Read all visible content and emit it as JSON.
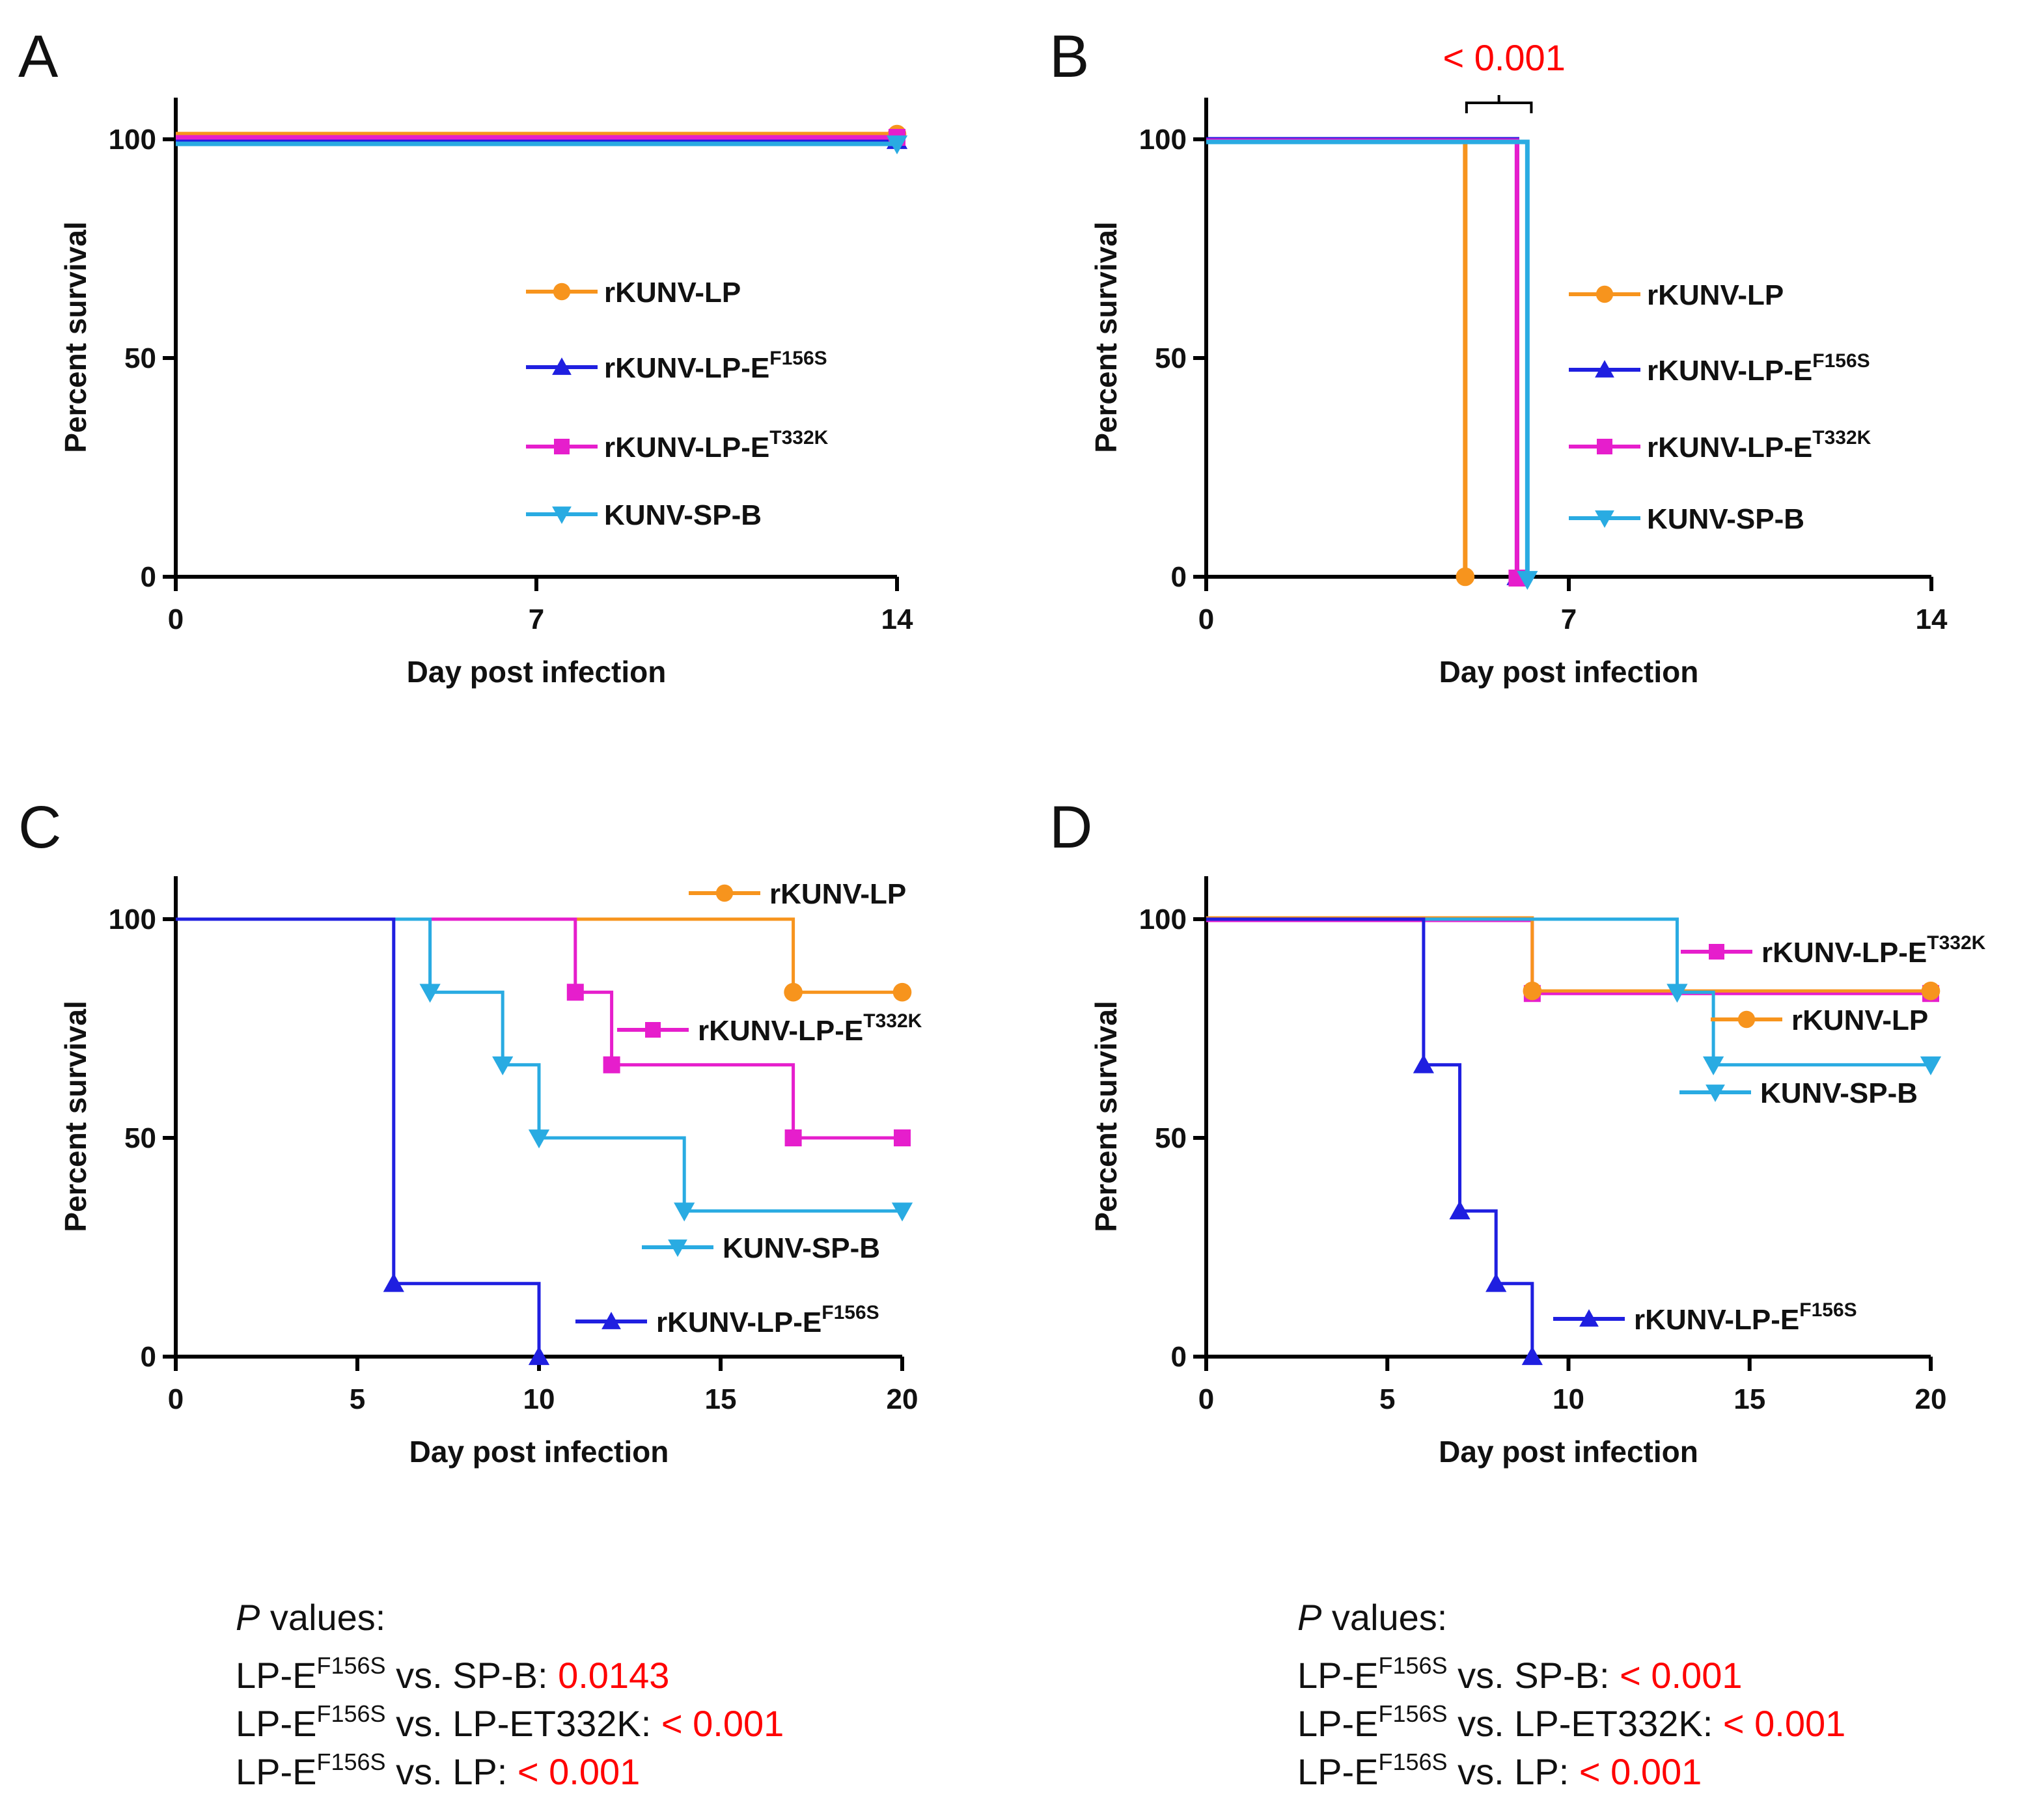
{
  "colors": {
    "rKUNV-LP": "#f7941d",
    "rKUNV-LP-E156": "#1f1fe0",
    "rKUNV-LP-T332": "#e61ecc",
    "KUNV-SP-B": "#29abe2",
    "axis": "#000000",
    "pvalue": "#ff0000"
  },
  "series_labels": {
    "lp": {
      "base": "rKUNV-LP",
      "sup": ""
    },
    "f156s": {
      "base": "rKUNV-LP-E",
      "sup": "F156S"
    },
    "t332k": {
      "base": "rKUNV-LP-E",
      "sup": "T332K"
    },
    "spb": {
      "base": "KUNV-SP-B",
      "sup": ""
    }
  },
  "chart_data": [
    {
      "panel": "A",
      "type": "line",
      "step": true,
      "xlabel": "Day post infection",
      "ylabel": "Percent survival",
      "xlim": [
        0,
        14
      ],
      "ylim": [
        0,
        110
      ],
      "xticks": [
        0,
        7,
        14
      ],
      "yticks": [
        0,
        50,
        100
      ],
      "legend_placement": "center-right",
      "series": [
        {
          "key": "lp",
          "name": "rKUNV-LP",
          "marker": "circle",
          "x": [
            0,
            14
          ],
          "y": [
            100,
            100
          ]
        },
        {
          "key": "f156s",
          "name": "rKUNV-LP-EF156S",
          "marker": "triangle-up",
          "x": [
            0,
            14
          ],
          "y": [
            100,
            100
          ]
        },
        {
          "key": "t332k",
          "name": "rKUNV-LP-ET332K",
          "marker": "square",
          "x": [
            0,
            14
          ],
          "y": [
            100,
            100
          ]
        },
        {
          "key": "spb",
          "name": "KUNV-SP-B",
          "marker": "triangle-down",
          "x": [
            0,
            14
          ],
          "y": [
            100,
            100
          ]
        }
      ],
      "annotations": []
    },
    {
      "panel": "B",
      "type": "line",
      "step": true,
      "xlabel": "Day post infection",
      "ylabel": "Percent survival",
      "xlim": [
        0,
        14
      ],
      "ylim": [
        0,
        110
      ],
      "xticks": [
        0,
        7,
        14
      ],
      "yticks": [
        0,
        50,
        100
      ],
      "legend_placement": "center-right",
      "series": [
        {
          "key": "lp",
          "name": "rKUNV-LP",
          "marker": "circle",
          "x": [
            0,
            5,
            5
          ],
          "y": [
            100,
            100,
            0
          ]
        },
        {
          "key": "f156s",
          "name": "rKUNV-LP-EF156S",
          "marker": "triangle-up",
          "x": [
            0,
            6,
            6
          ],
          "y": [
            100,
            100,
            0
          ]
        },
        {
          "key": "t332k",
          "name": "rKUNV-LP-ET332K",
          "marker": "square",
          "x": [
            0,
            6,
            6
          ],
          "y": [
            100,
            100,
            0
          ]
        },
        {
          "key": "spb",
          "name": "KUNV-SP-B",
          "marker": "triangle-down",
          "x": [
            0,
            6.2,
            6.2
          ],
          "y": [
            100,
            100,
            0
          ]
        }
      ],
      "annotations": [
        {
          "text": "< 0.001",
          "x_from": 5,
          "x_to": 6
        }
      ]
    },
    {
      "panel": "C",
      "type": "line",
      "step": true,
      "xlabel": "Day post infection",
      "ylabel": "Percent survival",
      "xlim": [
        0,
        20
      ],
      "ylim": [
        0,
        110
      ],
      "xticks": [
        0,
        5,
        10,
        15,
        20
      ],
      "yticks": [
        0,
        50,
        100
      ],
      "legend_placement": "inline",
      "series": [
        {
          "key": "lp",
          "name": "rKUNV-LP",
          "marker": "circle",
          "x": [
            0,
            17,
            17,
            20
          ],
          "y": [
            100,
            100,
            83.3,
            83.3
          ]
        },
        {
          "key": "t332k",
          "name": "rKUNV-LP-ET332K",
          "marker": "square",
          "x": [
            0,
            11,
            11,
            12,
            12,
            17,
            17,
            20
          ],
          "y": [
            100,
            100,
            83.3,
            83.3,
            66.7,
            66.7,
            50,
            50
          ]
        },
        {
          "key": "spb",
          "name": "KUNV-SP-B",
          "marker": "triangle-down",
          "x": [
            0,
            7,
            7,
            9,
            9,
            10,
            10,
            14,
            14,
            20
          ],
          "y": [
            100,
            100,
            83.3,
            83.3,
            66.7,
            66.7,
            50,
            50,
            33.3,
            33.3
          ]
        },
        {
          "key": "f156s",
          "name": "rKUNV-LP-EF156S",
          "marker": "triangle-up",
          "x": [
            0,
            6,
            6,
            10,
            10
          ],
          "y": [
            100,
            100,
            16.7,
            16.7,
            0
          ]
        }
      ],
      "annotations": []
    },
    {
      "panel": "D",
      "type": "line",
      "step": true,
      "xlabel": "Day post infection",
      "ylabel": "Percent survival",
      "xlim": [
        0,
        20
      ],
      "ylim": [
        0,
        110
      ],
      "xticks": [
        0,
        5,
        10,
        15,
        20
      ],
      "yticks": [
        0,
        50,
        100
      ],
      "legend_placement": "inline",
      "series": [
        {
          "key": "t332k",
          "name": "rKUNV-LP-ET332K",
          "marker": "square",
          "x": [
            0,
            9,
            9,
            20
          ],
          "y": [
            100,
            100,
            83.3,
            83.3
          ]
        },
        {
          "key": "lp",
          "name": "rKUNV-LP",
          "marker": "circle",
          "x": [
            0,
            9,
            9,
            20
          ],
          "y": [
            100,
            100,
            83.3,
            83.3
          ]
        },
        {
          "key": "spb",
          "name": "KUNV-SP-B",
          "marker": "triangle-down",
          "x": [
            0,
            13,
            13,
            14,
            14,
            20
          ],
          "y": [
            100,
            100,
            83.3,
            83.3,
            66.7,
            66.7
          ]
        },
        {
          "key": "f156s",
          "name": "rKUNV-LP-EF156S",
          "marker": "triangle-up",
          "x": [
            0,
            6,
            6,
            7,
            7,
            8,
            8,
            9,
            9
          ],
          "y": [
            100,
            100,
            66.7,
            66.7,
            33.3,
            33.3,
            16.7,
            16.7,
            0
          ]
        }
      ],
      "annotations": []
    }
  ],
  "pvalues": {
    "C": {
      "title_italic": "P",
      "title_rest": " values:",
      "rows": [
        {
          "pre": "LP-E",
          "sup": "F156S",
          "mid": " vs. SP-B: ",
          "value": "0.0143"
        },
        {
          "pre": "LP-E",
          "sup": "F156S",
          "mid": " vs. LP-ET332K: ",
          "value": "< 0.001"
        },
        {
          "pre": "LP-E",
          "sup": "F156S",
          "mid": " vs. LP: ",
          "value": "< 0.001"
        }
      ]
    },
    "D": {
      "title_italic": "P",
      "title_rest": " values:",
      "rows": [
        {
          "pre": "LP-E",
          "sup": "F156S",
          "mid": " vs. SP-B: ",
          "value": "< 0.001"
        },
        {
          "pre": "LP-E",
          "sup": "F156S",
          "mid": " vs. LP-ET332K: ",
          "value": "< 0.001"
        },
        {
          "pre": "LP-E",
          "sup": "F156S",
          "mid": " vs. LP: ",
          "value": "< 0.001"
        }
      ]
    }
  }
}
